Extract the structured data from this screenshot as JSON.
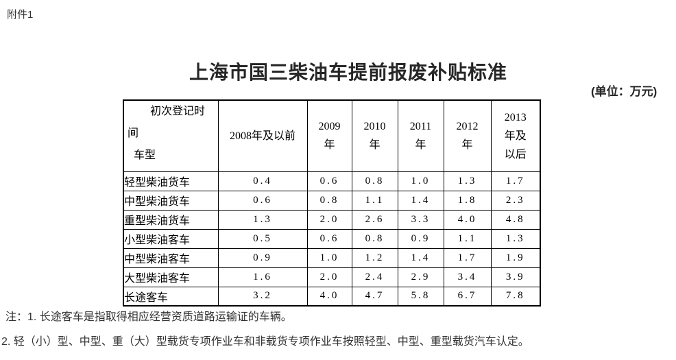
{
  "page": {
    "attachment_label": "附件1",
    "title": "上海市国三柴油车提前报废补贴标准",
    "unit_label": "(单位：万元)"
  },
  "colors": {
    "page_bg": "#ffffff",
    "title_text": "#262626",
    "note_text": "#333333",
    "table_text": "#000000",
    "table_border": "#000000"
  },
  "table": {
    "corner_lines": [
      "初次登记时",
      "间",
      "车型"
    ],
    "corner_label_registration": "初次登记时间",
    "corner_label_vehicle": "车型",
    "col_headers": [
      {
        "lines": [
          "2008年及以前"
        ]
      },
      {
        "lines": [
          "2009",
          "年"
        ]
      },
      {
        "lines": [
          "2010",
          "年"
        ]
      },
      {
        "lines": [
          "2011",
          "年"
        ]
      },
      {
        "lines": [
          "2012",
          "年"
        ]
      },
      {
        "lines": [
          "2013",
          "年及",
          "以后"
        ]
      }
    ],
    "rows": [
      {
        "label": "轻型柴油货车",
        "values": [
          "0.4",
          "0.6",
          "0.8",
          "1.0",
          "1.3",
          "1.7"
        ]
      },
      {
        "label": "中型柴油货车",
        "values": [
          "0.6",
          "0.8",
          "1.1",
          "1.4",
          "1.8",
          "2.3"
        ]
      },
      {
        "label": "重型柴油货车",
        "values": [
          "1.3",
          "2.0",
          "2.6",
          "3.3",
          "4.0",
          "4.8"
        ]
      },
      {
        "label": "小型柴油客车",
        "values": [
          "0.5",
          "0.6",
          "0.8",
          "0.9",
          "1.1",
          "1.3"
        ]
      },
      {
        "label": "中型柴油客车",
        "values": [
          "0.9",
          "1.0",
          "1.2",
          "1.4",
          "1.7",
          "1.9"
        ]
      },
      {
        "label": "大型柴油客车",
        "values": [
          "1.6",
          "2.0",
          "2.4",
          "2.9",
          "3.4",
          "3.9"
        ]
      },
      {
        "label": "长途客车",
        "values": [
          "3.2",
          "4.0",
          "4.7",
          "5.8",
          "6.7",
          "7.8"
        ]
      }
    ]
  },
  "notes": {
    "note1": "注：1. 长途客车是指取得相应经营资质道路运输证的车辆。",
    "note2": "2. 轻（小）型、中型、重（大）型载货专项作业车和非载货专项作业车按照轻型、中型、重型载货汽车认定。"
  }
}
